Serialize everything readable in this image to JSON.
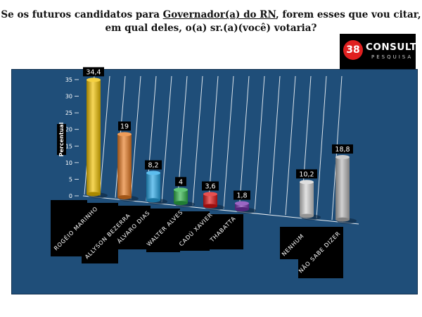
{
  "header": {
    "title_pre": "Se os futuros candidatos para ",
    "title_underlined": "Governador(a) do RN",
    "title_post": ", forem esses que vou citar,",
    "title_line2": "em qual deles, o(a) sr.(a)(você) votaria?"
  },
  "logo": {
    "number": "38",
    "brand": "CONSULT",
    "sub": "PESQUISA"
  },
  "chart_data": {
    "type": "bar",
    "ylabel": "Percentual",
    "ylim": [
      0,
      35
    ],
    "yticks": [
      "0",
      "5",
      "10",
      "15",
      "20",
      "25",
      "30",
      "35"
    ],
    "grid": true,
    "categories": [
      "ROGÉIO MARINHO",
      "ALLYSON BEZERRA",
      "ÁLVARO DIAS",
      "WALTER ALVES",
      "CADÚ XAVIER",
      "THABATTA",
      "NENHUM",
      "NÃO SABE DIZER"
    ],
    "values": [
      34.4,
      19,
      8.2,
      4,
      3.6,
      1.8,
      10.2,
      18.8
    ],
    "value_labels": [
      "34,4",
      "19",
      "8,2",
      "4",
      "3,6",
      "1,8",
      "10,2",
      "18,8"
    ],
    "colors": [
      "#f2c200",
      "#e87b22",
      "#27a7e8",
      "#2fb34a",
      "#e01515",
      "#7a33b0",
      "#d4d4d4",
      "#b8b8b8"
    ]
  }
}
